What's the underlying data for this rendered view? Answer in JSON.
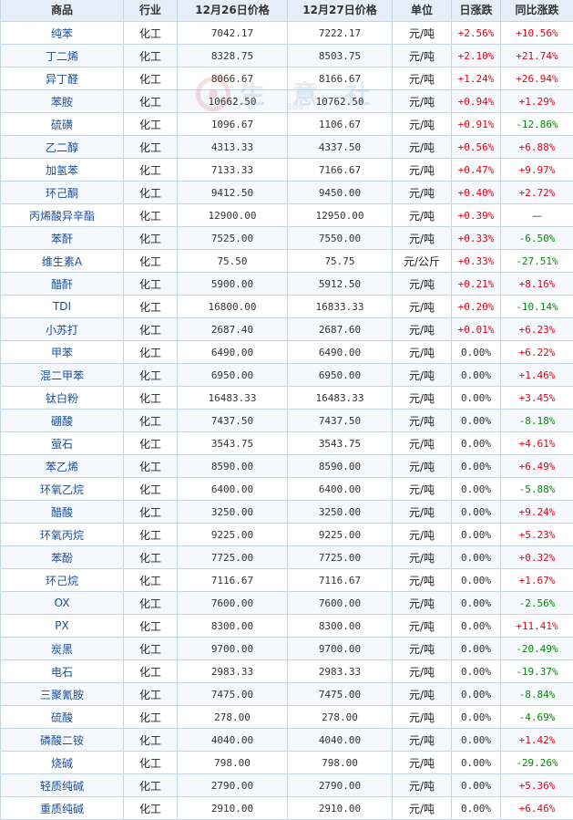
{
  "headers": [
    "商品",
    "行业",
    "12月26日价格",
    "12月27日价格",
    "单位",
    "日涨跌",
    "同比涨跌"
  ],
  "watermark": {
    "text": "生 意 社",
    "url": "100"
  },
  "rows": [
    {
      "name": "纯苯",
      "ind": "化工",
      "p1": "7042.17",
      "p2": "7222.17",
      "unit": "元/吨",
      "d": "+2.56%",
      "y": "+10.56%",
      "ydir": "up"
    },
    {
      "name": "丁二烯",
      "ind": "化工",
      "p1": "8328.75",
      "p2": "8503.75",
      "unit": "元/吨",
      "d": "+2.10%",
      "y": "+21.74%",
      "ydir": "up"
    },
    {
      "name": "异丁醛",
      "ind": "化工",
      "p1": "8066.67",
      "p2": "8166.67",
      "unit": "元/吨",
      "d": "+1.24%",
      "y": "+26.94%",
      "ydir": "up"
    },
    {
      "name": "苯胺",
      "ind": "化工",
      "p1": "10662.50",
      "p2": "10762.50",
      "unit": "元/吨",
      "d": "+0.94%",
      "y": "+1.29%",
      "ydir": "up"
    },
    {
      "name": "硫磺",
      "ind": "化工",
      "p1": "1096.67",
      "p2": "1106.67",
      "unit": "元/吨",
      "d": "+0.91%",
      "y": "-12.86%",
      "ydir": "down"
    },
    {
      "name": "乙二醇",
      "ind": "化工",
      "p1": "4313.33",
      "p2": "4337.50",
      "unit": "元/吨",
      "d": "+0.56%",
      "y": "+6.88%",
      "ydir": "up"
    },
    {
      "name": "加氢苯",
      "ind": "化工",
      "p1": "7133.33",
      "p2": "7166.67",
      "unit": "元/吨",
      "d": "+0.47%",
      "y": "+9.97%",
      "ydir": "up"
    },
    {
      "name": "环己酮",
      "ind": "化工",
      "p1": "9412.50",
      "p2": "9450.00",
      "unit": "元/吨",
      "d": "+0.40%",
      "y": "+2.72%",
      "ydir": "up"
    },
    {
      "name": "丙烯酸异辛酯",
      "ind": "化工",
      "p1": "12900.00",
      "p2": "12950.00",
      "unit": "元/吨",
      "d": "+0.39%",
      "y": "—",
      "ydir": "dash"
    },
    {
      "name": "苯酐",
      "ind": "化工",
      "p1": "7525.00",
      "p2": "7550.00",
      "unit": "元/吨",
      "d": "+0.33%",
      "y": "-6.50%",
      "ydir": "down"
    },
    {
      "name": "维生素A",
      "ind": "化工",
      "p1": "75.50",
      "p2": "75.75",
      "unit": "元/公斤",
      "d": "+0.33%",
      "y": "-27.51%",
      "ydir": "down"
    },
    {
      "name": "醋酐",
      "ind": "化工",
      "p1": "5900.00",
      "p2": "5912.50",
      "unit": "元/吨",
      "d": "+0.21%",
      "y": "+8.16%",
      "ydir": "up"
    },
    {
      "name": "TDI",
      "ind": "化工",
      "p1": "16800.00",
      "p2": "16833.33",
      "unit": "元/吨",
      "d": "+0.20%",
      "y": "-10.14%",
      "ydir": "down"
    },
    {
      "name": "小苏打",
      "ind": "化工",
      "p1": "2687.40",
      "p2": "2687.60",
      "unit": "元/吨",
      "d": "+0.01%",
      "y": "+6.23%",
      "ydir": "up"
    },
    {
      "name": "甲苯",
      "ind": "化工",
      "p1": "6490.00",
      "p2": "6490.00",
      "unit": "元/吨",
      "d": "0.00%",
      "y": "+6.22%",
      "ydir": "up"
    },
    {
      "name": "混二甲苯",
      "ind": "化工",
      "p1": "6950.00",
      "p2": "6950.00",
      "unit": "元/吨",
      "d": "0.00%",
      "y": "+1.46%",
      "ydir": "up"
    },
    {
      "name": "钛白粉",
      "ind": "化工",
      "p1": "16483.33",
      "p2": "16483.33",
      "unit": "元/吨",
      "d": "0.00%",
      "y": "+3.45%",
      "ydir": "up"
    },
    {
      "name": "硼酸",
      "ind": "化工",
      "p1": "7437.50",
      "p2": "7437.50",
      "unit": "元/吨",
      "d": "0.00%",
      "y": "-8.18%",
      "ydir": "down"
    },
    {
      "name": "萤石",
      "ind": "化工",
      "p1": "3543.75",
      "p2": "3543.75",
      "unit": "元/吨",
      "d": "0.00%",
      "y": "+4.61%",
      "ydir": "up"
    },
    {
      "name": "苯乙烯",
      "ind": "化工",
      "p1": "8590.00",
      "p2": "8590.00",
      "unit": "元/吨",
      "d": "0.00%",
      "y": "+6.49%",
      "ydir": "up"
    },
    {
      "name": "环氧乙烷",
      "ind": "化工",
      "p1": "6400.00",
      "p2": "6400.00",
      "unit": "元/吨",
      "d": "0.00%",
      "y": "-5.88%",
      "ydir": "down"
    },
    {
      "name": "醋酸",
      "ind": "化工",
      "p1": "3250.00",
      "p2": "3250.00",
      "unit": "元/吨",
      "d": "0.00%",
      "y": "+9.24%",
      "ydir": "up"
    },
    {
      "name": "环氧丙烷",
      "ind": "化工",
      "p1": "9225.00",
      "p2": "9225.00",
      "unit": "元/吨",
      "d": "0.00%",
      "y": "+5.23%",
      "ydir": "up"
    },
    {
      "name": "苯酚",
      "ind": "化工",
      "p1": "7725.00",
      "p2": "7725.00",
      "unit": "元/吨",
      "d": "0.00%",
      "y": "+0.32%",
      "ydir": "up"
    },
    {
      "name": "环己烷",
      "ind": "化工",
      "p1": "7116.67",
      "p2": "7116.67",
      "unit": "元/吨",
      "d": "0.00%",
      "y": "+1.67%",
      "ydir": "up"
    },
    {
      "name": "OX",
      "ind": "化工",
      "p1": "7600.00",
      "p2": "7600.00",
      "unit": "元/吨",
      "d": "0.00%",
      "y": "-2.56%",
      "ydir": "down"
    },
    {
      "name": "PX",
      "ind": "化工",
      "p1": "8300.00",
      "p2": "8300.00",
      "unit": "元/吨",
      "d": "0.00%",
      "y": "+11.41%",
      "ydir": "up"
    },
    {
      "name": "炭黑",
      "ind": "化工",
      "p1": "9700.00",
      "p2": "9700.00",
      "unit": "元/吨",
      "d": "0.00%",
      "y": "-20.49%",
      "ydir": "down"
    },
    {
      "name": "电石",
      "ind": "化工",
      "p1": "2983.33",
      "p2": "2983.33",
      "unit": "元/吨",
      "d": "0.00%",
      "y": "-19.37%",
      "ydir": "down"
    },
    {
      "name": "三聚氰胺",
      "ind": "化工",
      "p1": "7475.00",
      "p2": "7475.00",
      "unit": "元/吨",
      "d": "0.00%",
      "y": "-8.84%",
      "ydir": "down"
    },
    {
      "name": "硫酸",
      "ind": "化工",
      "p1": "278.00",
      "p2": "278.00",
      "unit": "元/吨",
      "d": "0.00%",
      "y": "-4.69%",
      "ydir": "down"
    },
    {
      "name": "磷酸二铵",
      "ind": "化工",
      "p1": "4040.00",
      "p2": "4040.00",
      "unit": "元/吨",
      "d": "0.00%",
      "y": "+1.42%",
      "ydir": "up"
    },
    {
      "name": "烧碱",
      "ind": "化工",
      "p1": "798.00",
      "p2": "798.00",
      "unit": "元/吨",
      "d": "0.00%",
      "y": "-29.26%",
      "ydir": "down"
    },
    {
      "name": "轻质纯碱",
      "ind": "化工",
      "p1": "2790.00",
      "p2": "2790.00",
      "unit": "元/吨",
      "d": "0.00%",
      "y": "+5.36%",
      "ydir": "up"
    },
    {
      "name": "重质纯碱",
      "ind": "化工",
      "p1": "2910.00",
      "p2": "2910.00",
      "unit": "元/吨",
      "d": "0.00%",
      "y": "+6.46%",
      "ydir": "up"
    }
  ]
}
